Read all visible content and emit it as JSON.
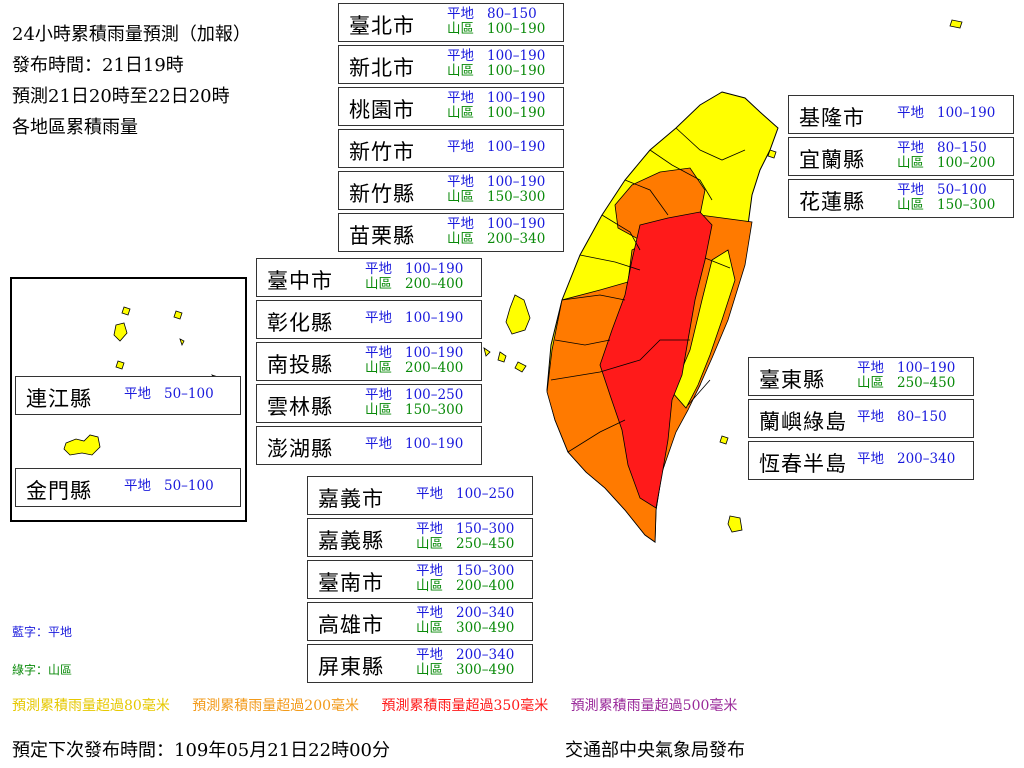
{
  "header": {
    "title": "24小時累積雨量預測（加報）",
    "issue_time": "發布時間：21日19時",
    "forecast_period": "預測21日20時至22日20時",
    "subtitle": "各地區累積雨量"
  },
  "labels": {
    "plain": "平地",
    "mountain": "山區"
  },
  "regions": [
    {
      "id": "taipei-city",
      "name": "臺北市",
      "plain": "80–150",
      "mountain": "100–190"
    },
    {
      "id": "new-taipei-city",
      "name": "新北市",
      "plain": "100–190",
      "mountain": "100–190"
    },
    {
      "id": "taoyuan-city",
      "name": "桃園市",
      "plain": "100–190",
      "mountain": "100–190"
    },
    {
      "id": "hsinchu-city",
      "name": "新竹市",
      "plain": "100–190"
    },
    {
      "id": "hsinchu-county",
      "name": "新竹縣",
      "plain": "100–190",
      "mountain": "150–300"
    },
    {
      "id": "miaoli-county",
      "name": "苗栗縣",
      "plain": "100–190",
      "mountain": "200–340"
    },
    {
      "id": "taichung-city",
      "name": "臺中市",
      "plain": "100–190",
      "mountain": "200–400"
    },
    {
      "id": "changhua-county",
      "name": "彰化縣",
      "plain": "100–190"
    },
    {
      "id": "nantou-county",
      "name": "南投縣",
      "plain": "100–190",
      "mountain": "200–400"
    },
    {
      "id": "yunlin-county",
      "name": "雲林縣",
      "plain": "100–250",
      "mountain": "150–300"
    },
    {
      "id": "penghu-county",
      "name": "澎湖縣",
      "plain": "100–190"
    },
    {
      "id": "chiayi-city",
      "name": "嘉義市",
      "plain": "100–250"
    },
    {
      "id": "chiayi-county",
      "name": "嘉義縣",
      "plain": "150–300",
      "mountain": "250–450"
    },
    {
      "id": "tainan-city",
      "name": "臺南市",
      "plain": "150–300",
      "mountain": "200–400"
    },
    {
      "id": "kaohsiung-city",
      "name": "高雄市",
      "plain": "200–340",
      "mountain": "300–490"
    },
    {
      "id": "pingtung-county",
      "name": "屏東縣",
      "plain": "200–340",
      "mountain": "300–490"
    },
    {
      "id": "keelung-city",
      "name": "基隆市",
      "plain": "100–190"
    },
    {
      "id": "yilan-county",
      "name": "宜蘭縣",
      "plain": "80–150",
      "mountain": "100–200"
    },
    {
      "id": "hualien-county",
      "name": "花蓮縣",
      "plain": "50–100",
      "mountain": "150–300"
    },
    {
      "id": "taitung-county",
      "name": "臺東縣",
      "plain": "100–190",
      "mountain": "250–450"
    },
    {
      "id": "lanyu-green-island",
      "name": "蘭嶼綠島",
      "plain": "80–150"
    },
    {
      "id": "hengchun-peninsula",
      "name": "恆春半島",
      "plain": "200–340"
    },
    {
      "id": "lienchiang-county",
      "name": "連江縣",
      "plain": "50–100"
    },
    {
      "id": "kinmen-county",
      "name": "金門縣",
      "plain": "50–100"
    }
  ],
  "legend": {
    "blue_text": "藍字：平地",
    "green_text": "綠字：山區",
    "levels": [
      {
        "text": "預測累積雨量超過80毫米",
        "color": "#e6c800"
      },
      {
        "text": "預測累積雨量超過200毫米",
        "color": "#f29a1a"
      },
      {
        "text": "預測累積雨量超過350毫米",
        "color": "#ff1a1a"
      },
      {
        "text": "預測累積雨量超過500毫米",
        "color": "#9a2a9a"
      }
    ]
  },
  "footer": {
    "next_issue": "預定下次發布時間：109年05月21日22時00分",
    "issuer": "交通部中央氣象局發布"
  },
  "colors": {
    "yellow": "#ffff00",
    "orange": "#ff7a00",
    "red": "#ff1a1a",
    "outline": "#000000"
  }
}
